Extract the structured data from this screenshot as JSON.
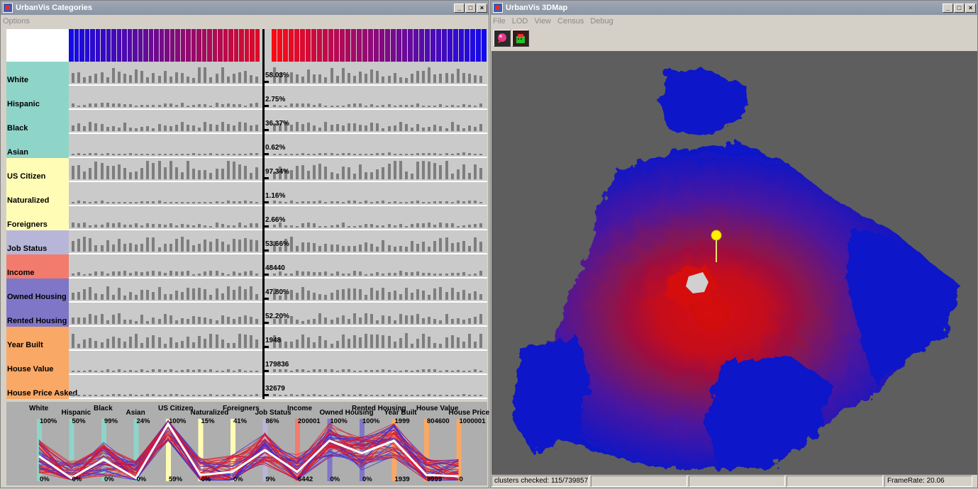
{
  "left_window": {
    "title": "UrbanVis Categories",
    "menu": [
      "Options"
    ],
    "controls": [
      "_",
      "□",
      "×"
    ]
  },
  "right_window": {
    "title": "UrbanVis 3DMap",
    "menu": [
      "File",
      "LOD",
      "View",
      "Census",
      "Debug"
    ],
    "controls": [
      "_",
      "□",
      "×"
    ],
    "toolbar": [
      {
        "icon": "pin-tool-icon"
      },
      {
        "icon": "building-tool-icon"
      }
    ],
    "status": {
      "clusters": "clusters checked: 115/739857",
      "framerate": "FrameRate: 20.06"
    }
  },
  "colors": {
    "white": "#8fd4c9",
    "hispanic": "#8fd4c9",
    "black": "#8fd4c9",
    "asian": "#8fd4c9",
    "citizen": "#fffdb5",
    "job": "#b8b6d8",
    "income": "#f27b6d",
    "housing": "#7f76c8",
    "house": "#f9a866",
    "map_bg": "#5e5e5e",
    "blue": "#0c14c8",
    "red": "#d60a0a"
  },
  "categories": [
    {
      "label": "White",
      "value": "58.03%",
      "color": "#8fd4c9"
    },
    {
      "label": "Hispanic",
      "value": "2.75%",
      "color": "#8fd4c9"
    },
    {
      "label": "Black",
      "value": "36.37%",
      "color": "#8fd4c9"
    },
    {
      "label": "Asian",
      "value": "0.62%",
      "color": "#8fd4c9"
    },
    {
      "label": "US Citizen",
      "value": "97.34%",
      "color": "#fffdb5"
    },
    {
      "label": "Naturalized",
      "value": "1.16%",
      "color": "#fffdb5"
    },
    {
      "label": "Foreigners",
      "value": "2.66%",
      "color": "#fffdb5"
    },
    {
      "label": "Job Status",
      "value": "53.66%",
      "color": "#b8b6d8"
    },
    {
      "label": "Income",
      "value": "48440",
      "color": "#f27b6d"
    },
    {
      "label": "Owned Housing",
      "value": "47.80%",
      "color": "#7f76c8"
    },
    {
      "label": "Rented Housing",
      "value": "52.20%",
      "color": "#7f76c8"
    },
    {
      "label": "Year Built",
      "value": "1948",
      "color": "#f9a866"
    },
    {
      "label": "House Value",
      "value": "179836",
      "color": "#f9a866"
    },
    {
      "label": "House Price Asked",
      "value": "32679",
      "color": "#f9a866"
    }
  ],
  "parallel_coords": {
    "axes": [
      {
        "title": "White",
        "max": "100%",
        "min": "0%",
        "color": "#8fd4c9"
      },
      {
        "title": "Hispanic",
        "max": "50%",
        "min": "0%",
        "color": "#8fd4c9"
      },
      {
        "title": "Black",
        "max": "99%",
        "min": "0%",
        "color": "#8fd4c9"
      },
      {
        "title": "Asian",
        "max": "24%",
        "min": "0%",
        "color": "#8fd4c9"
      },
      {
        "title": "US Citizen",
        "max": "100%",
        "min": "59%",
        "color": "#fffdb5"
      },
      {
        "title": "Naturalized",
        "max": "15%",
        "min": "0%",
        "color": "#fffdb5"
      },
      {
        "title": "Foreigners",
        "max": "41%",
        "min": "0%",
        "color": "#fffdb5"
      },
      {
        "title": "Job Status",
        "max": "86%",
        "min": "9%",
        "color": "#b8b6d8"
      },
      {
        "title": "Income",
        "max": "200001",
        "min": "6442",
        "color": "#f27b6d"
      },
      {
        "title": "Owned Housing",
        "max": "100%",
        "min": "0%",
        "color": "#7f76c8"
      },
      {
        "title": "Rented Housing",
        "max": "100%",
        "min": "0%",
        "color": "#7f76c8"
      },
      {
        "title": "Year Built",
        "max": "1999",
        "min": "1939",
        "color": "#f9a866"
      },
      {
        "title": "House Value",
        "max": "804600",
        "min": "9999",
        "color": "#f9a866"
      },
      {
        "title": "House Price Asked",
        "max": "1000001",
        "min": "0",
        "color": "#f9a866"
      }
    ]
  }
}
